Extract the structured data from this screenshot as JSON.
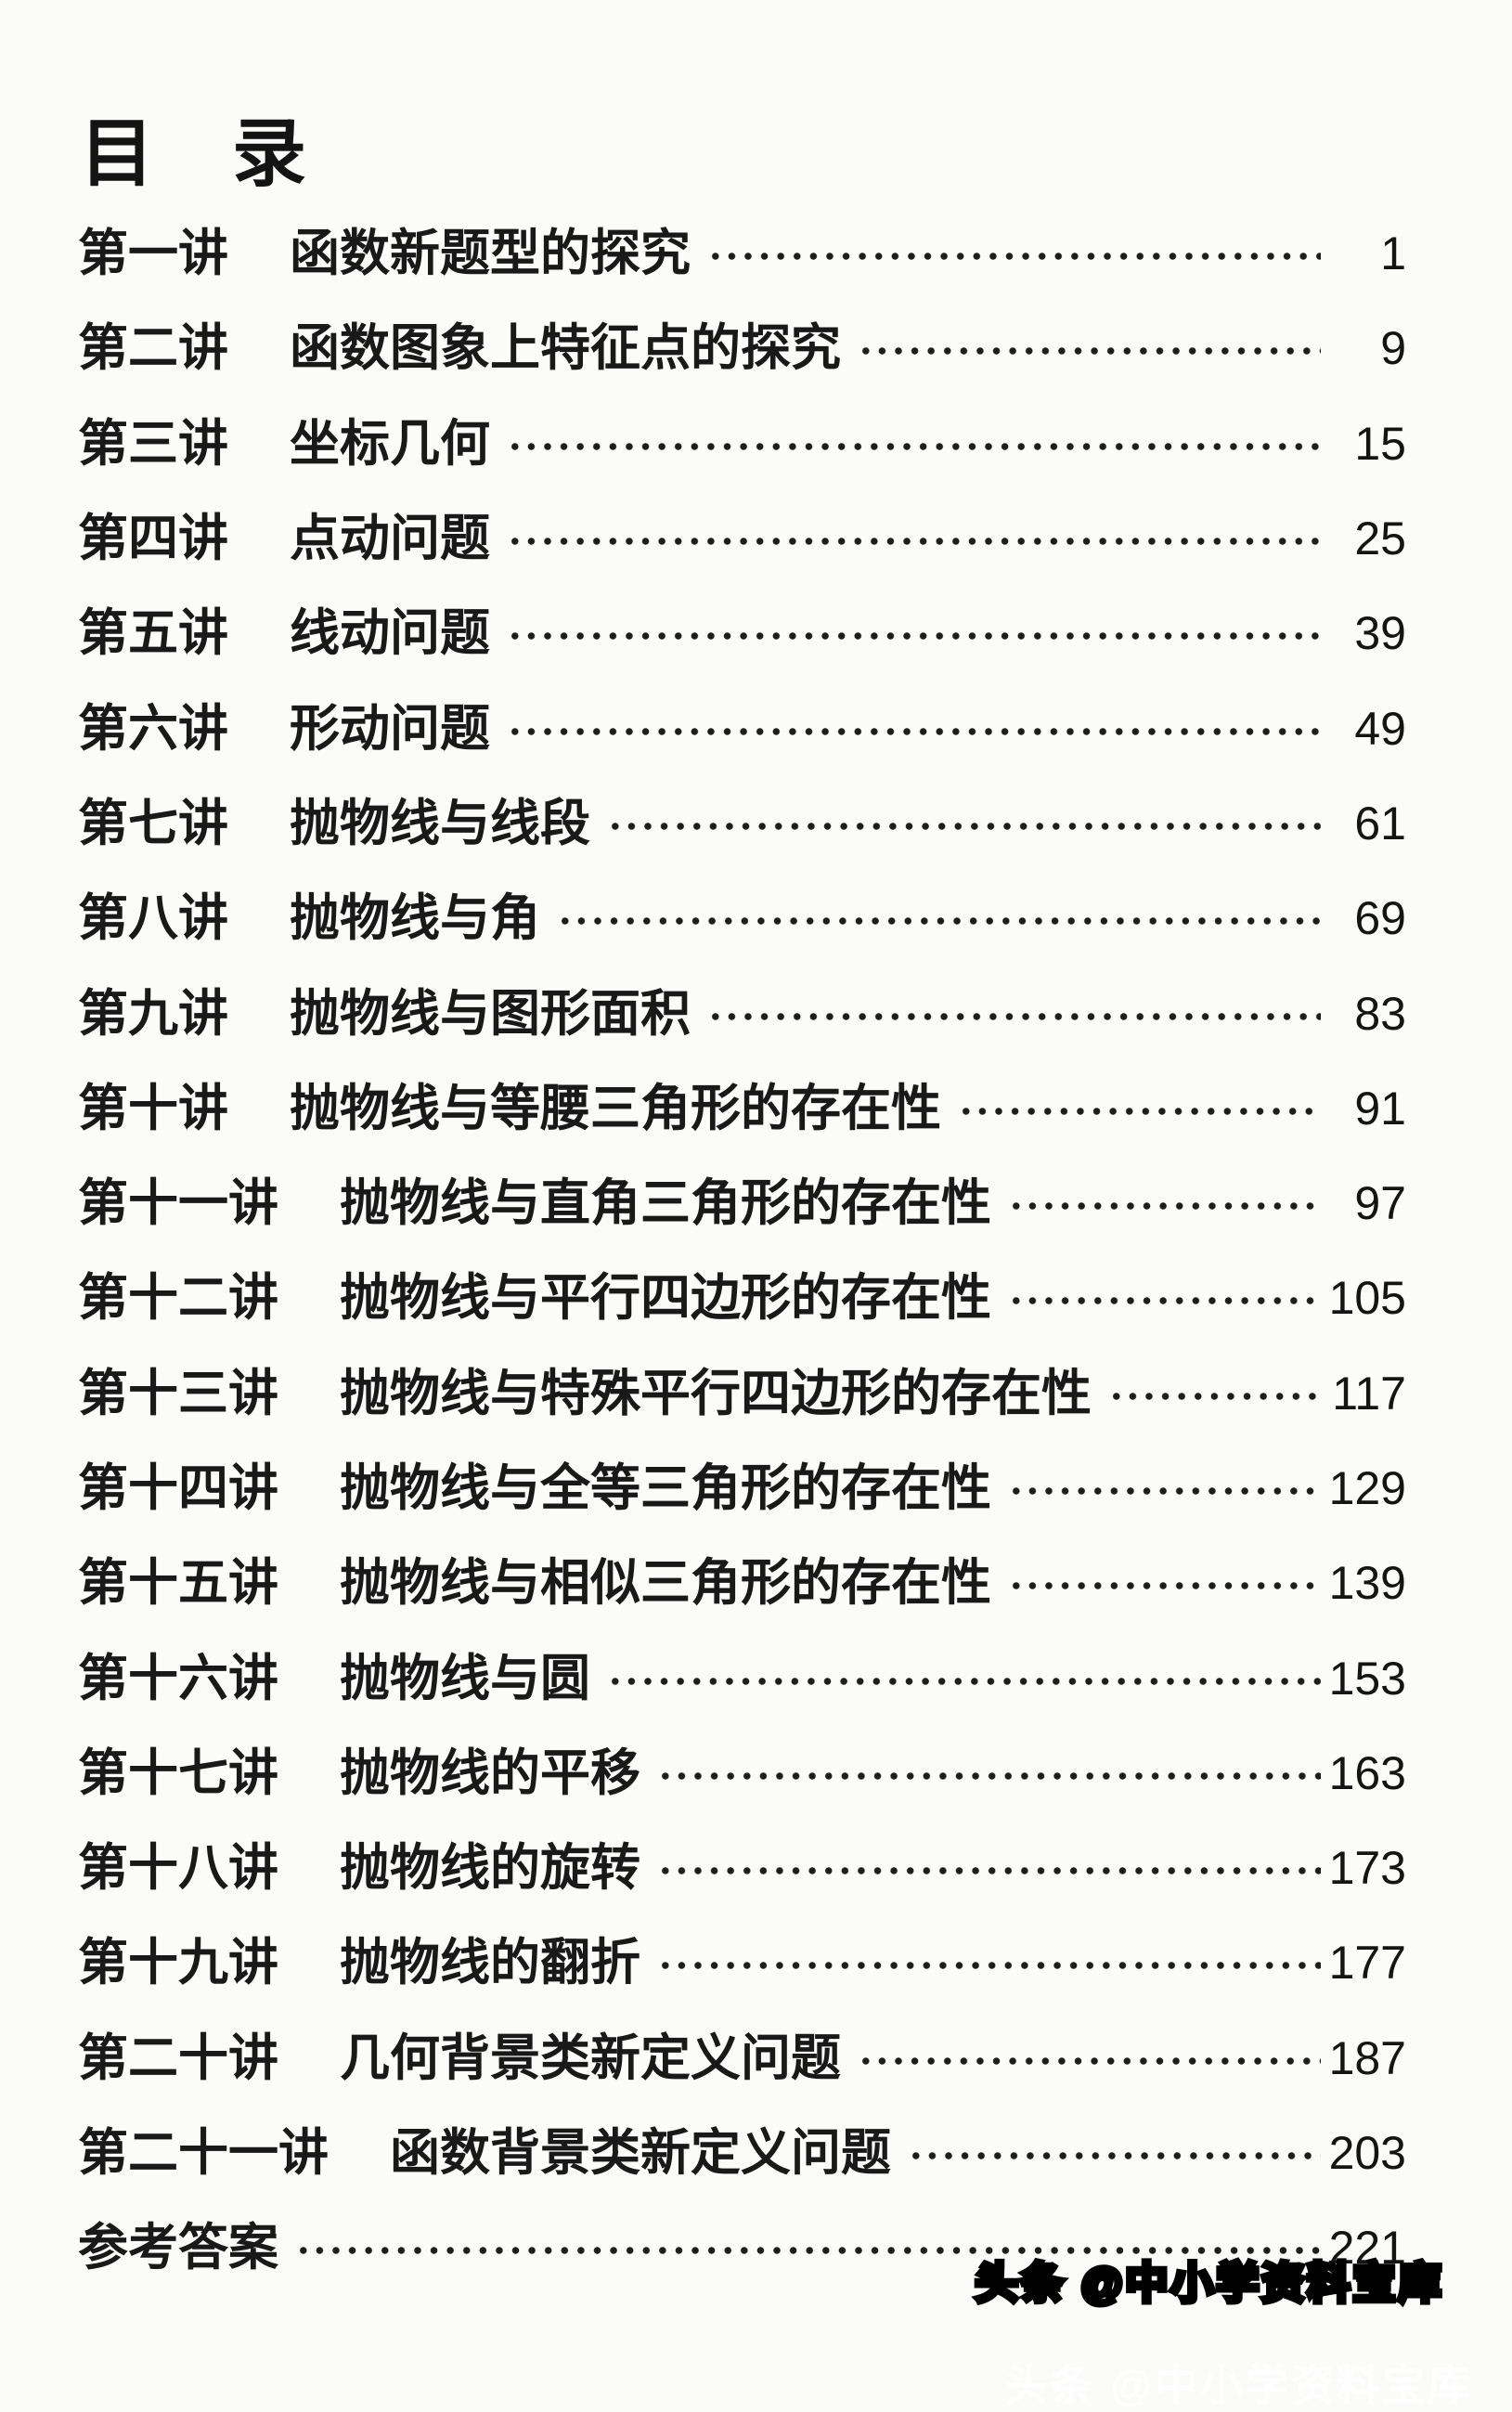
{
  "page": {
    "title": "目　录",
    "footer": "头条 @中小学资料宝库",
    "colors": {
      "ink": "#1a1a1a",
      "paper": "#fbfbfa",
      "footer_fill": "#ffffff",
      "footer_stroke": "#000000"
    }
  },
  "toc": {
    "entries": [
      {
        "label": "第一讲",
        "title": "函数新题型的探究",
        "page": "1"
      },
      {
        "label": "第二讲",
        "title": "函数图象上特征点的探究",
        "page": "9"
      },
      {
        "label": "第三讲",
        "title": "坐标几何",
        "page": "15"
      },
      {
        "label": "第四讲",
        "title": "点动问题",
        "page": "25"
      },
      {
        "label": "第五讲",
        "title": "线动问题",
        "page": "39"
      },
      {
        "label": "第六讲",
        "title": "形动问题",
        "page": "49"
      },
      {
        "label": "第七讲",
        "title": "抛物线与线段",
        "page": "61"
      },
      {
        "label": "第八讲",
        "title": "抛物线与角",
        "page": "69"
      },
      {
        "label": "第九讲",
        "title": "抛物线与图形面积",
        "page": "83"
      },
      {
        "label": "第十讲",
        "title": "抛物线与等腰三角形的存在性",
        "page": "91"
      },
      {
        "label": "第十一讲",
        "title": "抛物线与直角三角形的存在性",
        "page": "97"
      },
      {
        "label": "第十二讲",
        "title": "抛物线与平行四边形的存在性",
        "page": "105"
      },
      {
        "label": "第十三讲",
        "title": "抛物线与特殊平行四边形的存在性",
        "page": "117"
      },
      {
        "label": "第十四讲",
        "title": "抛物线与全等三角形的存在性",
        "page": "129"
      },
      {
        "label": "第十五讲",
        "title": "抛物线与相似三角形的存在性",
        "page": "139"
      },
      {
        "label": "第十六讲",
        "title": "抛物线与圆",
        "page": "153"
      },
      {
        "label": "第十七讲",
        "title": "抛物线的平移",
        "page": "163"
      },
      {
        "label": "第十八讲",
        "title": "抛物线的旋转",
        "page": "173"
      },
      {
        "label": "第十九讲",
        "title": "抛物线的翻折",
        "page": "177"
      },
      {
        "label": "第二十讲",
        "title": "几何背景类新定义问题",
        "page": "187"
      },
      {
        "label": "第二十一讲",
        "title": "函数背景类新定义问题",
        "page": "203"
      },
      {
        "label": "",
        "title": "参考答案",
        "page": "221"
      }
    ]
  }
}
